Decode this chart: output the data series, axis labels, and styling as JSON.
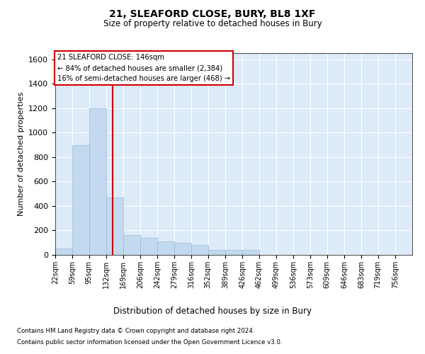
{
  "title1": "21, SLEAFORD CLOSE, BURY, BL8 1XF",
  "title2": "Size of property relative to detached houses in Bury",
  "xlabel": "Distribution of detached houses by size in Bury",
  "ylabel": "Number of detached properties",
  "footnote1": "Contains HM Land Registry data © Crown copyright and database right 2024.",
  "footnote2": "Contains public sector information licensed under the Open Government Licence v3.0.",
  "bar_color": "#c2d9ef",
  "bar_edge_color": "#9bbcd8",
  "background_color": "#ddeaf7",
  "vline_color": "#cc0000",
  "annotation_text": "21 SLEAFORD CLOSE: 146sqm\n← 84% of detached houses are smaller (2,384)\n16% of semi-detached houses are larger (468) →",
  "property_size": 146,
  "categories": [
    "22sqm",
    "59sqm",
    "95sqm",
    "132sqm",
    "169sqm",
    "206sqm",
    "242sqm",
    "279sqm",
    "316sqm",
    "352sqm",
    "389sqm",
    "426sqm",
    "462sqm",
    "499sqm",
    "536sqm",
    "573sqm",
    "609sqm",
    "646sqm",
    "683sqm",
    "719sqm",
    "756sqm"
  ],
  "values": [
    50,
    900,
    1200,
    470,
    160,
    140,
    110,
    100,
    80,
    40,
    40,
    40,
    0,
    0,
    0,
    0,
    0,
    0,
    0,
    0,
    0
  ],
  "bin_edges": [
    22,
    59,
    95,
    132,
    169,
    206,
    242,
    279,
    316,
    352,
    389,
    426,
    462,
    499,
    536,
    573,
    609,
    646,
    683,
    719,
    756,
    793
  ],
  "ylim": [
    0,
    1650
  ],
  "yticks": [
    0,
    200,
    400,
    600,
    800,
    1000,
    1200,
    1400,
    1600
  ],
  "figsize": [
    6.0,
    5.0
  ],
  "dpi": 100
}
